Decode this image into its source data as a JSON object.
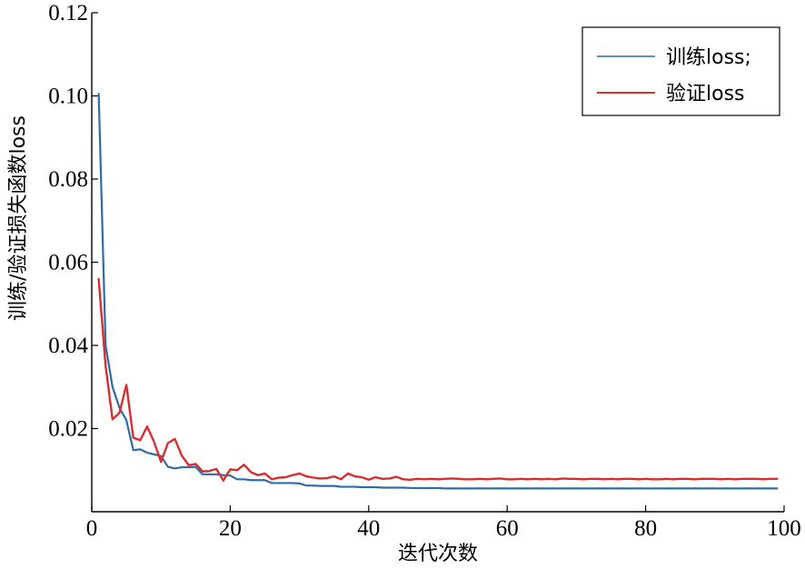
{
  "chart_data": {
    "type": "line",
    "title": "",
    "xlabel": "迭代次数",
    "ylabel": "训练/验证损失函数loss",
    "xlim": [
      0,
      100
    ],
    "ylim": [
      0,
      0.12
    ],
    "xticks": [
      "0",
      "20",
      "40",
      "60",
      "80",
      "100"
    ],
    "yticks": [
      "0.12",
      "0.10",
      "0.08",
      "0.06",
      "0.04",
      "0.02"
    ],
    "grid": false,
    "legend_position": "top-right",
    "series": [
      {
        "name": "训练loss;",
        "color": "#2e6da4",
        "x": [
          1,
          2,
          3,
          4,
          5,
          6,
          7,
          8,
          9,
          10,
          11,
          12,
          13,
          14,
          15,
          16,
          17,
          18,
          19,
          20,
          21,
          22,
          23,
          24,
          25,
          26,
          27,
          28,
          29,
          30,
          31,
          32,
          33,
          34,
          35,
          36,
          37,
          38,
          39,
          40,
          41,
          42,
          43,
          44,
          45,
          46,
          47,
          48,
          49,
          50,
          51,
          52,
          53,
          54,
          55,
          56,
          57,
          58,
          59,
          60,
          61,
          62,
          63,
          64,
          65,
          66,
          67,
          68,
          69,
          70,
          71,
          72,
          73,
          74,
          75,
          76,
          77,
          78,
          79,
          80,
          81,
          82,
          83,
          84,
          85,
          86,
          87,
          88,
          89,
          90,
          91,
          92,
          93,
          94,
          95,
          96,
          97,
          98,
          99
        ],
        "y": [
          0.1005,
          0.04,
          0.03,
          0.025,
          0.022,
          0.0148,
          0.015,
          0.0142,
          0.0138,
          0.0134,
          0.0108,
          0.0104,
          0.0107,
          0.0107,
          0.0108,
          0.009,
          0.009,
          0.009,
          0.0088,
          0.0087,
          0.0078,
          0.0078,
          0.0076,
          0.0076,
          0.0076,
          0.0069,
          0.0069,
          0.0069,
          0.0069,
          0.0068,
          0.0063,
          0.0063,
          0.0062,
          0.0062,
          0.0062,
          0.006,
          0.006,
          0.006,
          0.0059,
          0.0059,
          0.0059,
          0.0058,
          0.0058,
          0.0058,
          0.0058,
          0.0057,
          0.0057,
          0.0057,
          0.0057,
          0.0057,
          0.0056,
          0.0056,
          0.0056,
          0.0056,
          0.0056,
          0.0056,
          0.0056,
          0.0056,
          0.0056,
          0.0056,
          0.0056,
          0.0056,
          0.0056,
          0.0056,
          0.0056,
          0.0056,
          0.0056,
          0.0056,
          0.0056,
          0.0056,
          0.0056,
          0.0056,
          0.0056,
          0.0056,
          0.0056,
          0.0056,
          0.0056,
          0.0056,
          0.0056,
          0.0056,
          0.0056,
          0.0056,
          0.0056,
          0.0056,
          0.0056,
          0.0056,
          0.0056,
          0.0056,
          0.0056,
          0.0056,
          0.0056,
          0.0056,
          0.0056,
          0.0056,
          0.0056,
          0.0056,
          0.0056,
          0.0056,
          0.0056
        ]
      },
      {
        "name": "验证loss",
        "color": "#d62f2f",
        "x": [
          1,
          2,
          3,
          4,
          5,
          6,
          7,
          8,
          9,
          10,
          11,
          12,
          13,
          14,
          15,
          16,
          17,
          18,
          19,
          20,
          21,
          22,
          23,
          24,
          25,
          26,
          27,
          28,
          29,
          30,
          31,
          32,
          33,
          34,
          35,
          36,
          37,
          38,
          39,
          40,
          41,
          42,
          43,
          44,
          45,
          46,
          47,
          48,
          49,
          50,
          51,
          52,
          53,
          54,
          55,
          56,
          57,
          58,
          59,
          60,
          61,
          62,
          63,
          64,
          65,
          66,
          67,
          68,
          69,
          70,
          71,
          72,
          73,
          74,
          75,
          76,
          77,
          78,
          79,
          80,
          81,
          82,
          83,
          84,
          85,
          86,
          87,
          88,
          89,
          90,
          91,
          92,
          93,
          94,
          95,
          96,
          97,
          98,
          99
        ],
        "y": [
          0.056,
          0.035,
          0.0222,
          0.0238,
          0.0305,
          0.0178,
          0.0172,
          0.0205,
          0.0168,
          0.012,
          0.0165,
          0.0175,
          0.0135,
          0.0112,
          0.0115,
          0.0097,
          0.0098,
          0.0103,
          0.0075,
          0.0102,
          0.01,
          0.0113,
          0.0095,
          0.0088,
          0.0092,
          0.0078,
          0.0082,
          0.0083,
          0.0088,
          0.0092,
          0.0085,
          0.0082,
          0.008,
          0.0081,
          0.0085,
          0.0078,
          0.0092,
          0.0085,
          0.0083,
          0.0077,
          0.0083,
          0.0079,
          0.008,
          0.0084,
          0.0078,
          0.0077,
          0.0079,
          0.0078,
          0.0079,
          0.0078,
          0.0079,
          0.008,
          0.0079,
          0.0078,
          0.0078,
          0.0079,
          0.0078,
          0.0079,
          0.008,
          0.0078,
          0.0078,
          0.0079,
          0.0078,
          0.0079,
          0.0078,
          0.0079,
          0.0078,
          0.008,
          0.0079,
          0.0079,
          0.0078,
          0.0079,
          0.0079,
          0.0078,
          0.0079,
          0.0078,
          0.0079,
          0.0079,
          0.0078,
          0.0079,
          0.0078,
          0.0078,
          0.0079,
          0.0078,
          0.0079,
          0.0079,
          0.0078,
          0.0079,
          0.0079,
          0.0079,
          0.0078,
          0.0079,
          0.0078,
          0.0079,
          0.0079,
          0.0079,
          0.0078,
          0.0079,
          0.0079
        ]
      }
    ]
  }
}
